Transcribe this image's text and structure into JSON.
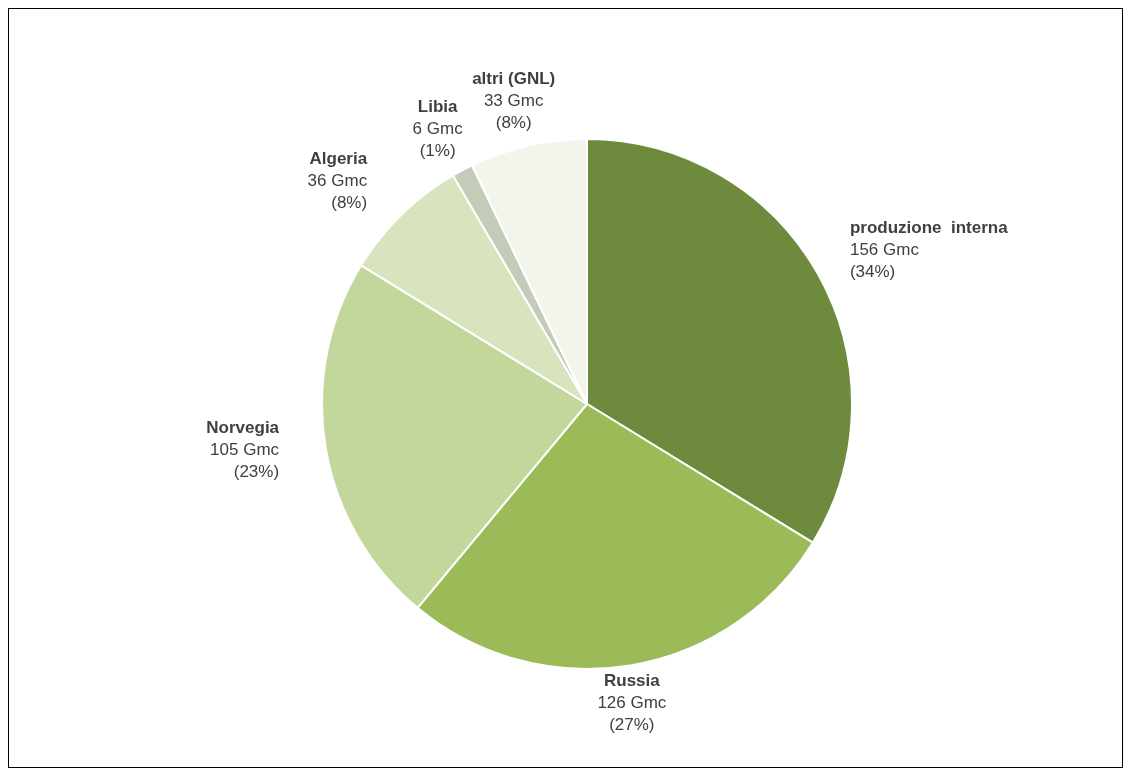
{
  "chart_data": {
    "type": "pie",
    "categories": [
      "produzione  interna",
      "Russia",
      "Norvegia",
      "Algeria",
      "Libia",
      "altri (GNL)"
    ],
    "values": [
      156,
      126,
      105,
      36,
      6,
      33
    ],
    "value_labels": [
      "156 Gmc (34%)",
      "126 Gmc (27%)",
      "105 Gmc (23%)",
      "36 Gmc (8%)",
      "6 Gmc (1%)",
      "33 Gmc (8%)"
    ],
    "colors": [
      "#6e8b3d",
      "#9bbb59",
      "#c3d69b",
      "#d7e4bd",
      "#c4cbb8",
      "#f2f5eb"
    ],
    "legend": false
  }
}
